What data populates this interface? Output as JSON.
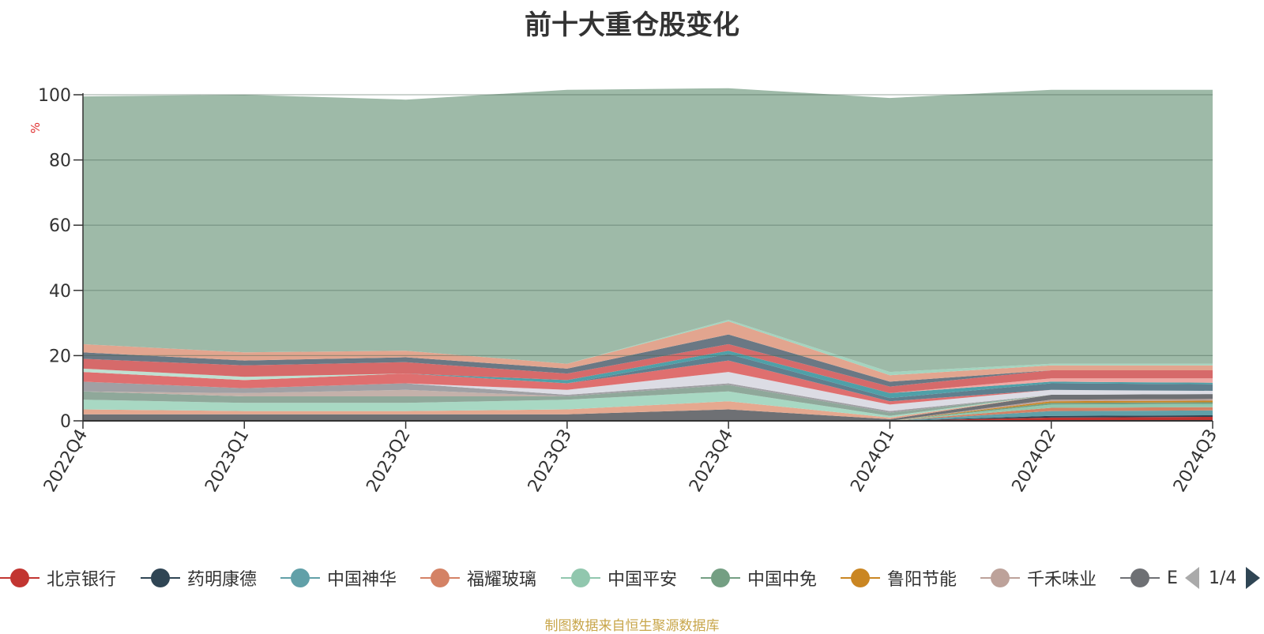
{
  "chart_data": {
    "type": "area",
    "title": "前十大重仓股变化",
    "ylabel": "%",
    "ylim": [
      0,
      100
    ],
    "yticks": [
      0,
      20,
      40,
      60,
      80,
      100
    ],
    "stacked": true,
    "grid": true,
    "legend_position": "bottom",
    "categories": [
      "2022Q4",
      "2023Q1",
      "2023Q2",
      "2023Q3",
      "2023Q4",
      "2024Q1",
      "2024Q2",
      "2024Q3"
    ],
    "series": [
      {
        "name": "北京银行",
        "color": "#c23531",
        "values": [
          0,
          0,
          0,
          0,
          0,
          0,
          1.0,
          1.2
        ]
      },
      {
        "name": "药明康德",
        "color": "#2f4554",
        "values": [
          0,
          0,
          0,
          0,
          0,
          0,
          0.5,
          0.5
        ]
      },
      {
        "name": "中国神华",
        "color": "#61a0a8",
        "values": [
          0,
          0,
          0,
          0,
          0,
          0,
          1.5,
          1.5
        ]
      },
      {
        "name": "福耀玻璃",
        "color": "#d48265",
        "values": [
          0,
          0,
          0,
          0,
          0,
          0,
          1.0,
          1.0
        ]
      },
      {
        "name": "中国平安",
        "color": "#91c7ae",
        "values": [
          0,
          0,
          0,
          0,
          0,
          0,
          1.0,
          1.0
        ]
      },
      {
        "name": "中国中免",
        "color": "#749f83",
        "values": [
          0,
          0,
          0,
          0,
          0,
          0,
          0.5,
          0.5
        ]
      },
      {
        "name": "鲁阳节能",
        "color": "#ca8622",
        "values": [
          0,
          0,
          0,
          0,
          0,
          0,
          0.5,
          0.5
        ]
      },
      {
        "name": "千禾味业",
        "color": "#bda29a",
        "values": [
          0,
          0,
          0,
          0,
          0,
          0,
          0.5,
          0.5
        ]
      },
      {
        "name": "",
        "color": "#6e7074",
        "values": [
          2.0,
          2.0,
          2.0,
          2.0,
          3.5,
          0.5,
          1.5,
          1.5
        ]
      },
      {
        "name": "",
        "color": "#e5a88f",
        "values": [
          1.5,
          1.0,
          1.0,
          1.5,
          2.5,
          0.5,
          0,
          0
        ]
      },
      {
        "name": "",
        "color": "#a8d8c3",
        "values": [
          3.0,
          2.5,
          2.5,
          3.0,
          3.0,
          0.5,
          0,
          0
        ]
      },
      {
        "name": "",
        "color": "#8fa89a",
        "values": [
          2.5,
          2.0,
          2.0,
          1.0,
          2.0,
          1.0,
          0,
          0
        ]
      },
      {
        "name": "",
        "color": "#c4b1aa",
        "values": [
          0,
          1.0,
          2.0,
          0,
          0,
          0,
          0,
          0
        ]
      },
      {
        "name": "",
        "color": "#a0a0a4",
        "values": [
          3.0,
          1.5,
          2.0,
          0.5,
          0.5,
          0.5,
          0,
          0
        ]
      },
      {
        "name": "",
        "color": "#dcdce4",
        "values": [
          0,
          0,
          0,
          1.5,
          3.5,
          2.0,
          1.5,
          1.0
        ]
      },
      {
        "name": "",
        "color": "#df6f6f",
        "values": [
          3.0,
          2.5,
          3.0,
          2.0,
          3.5,
          1.0,
          0,
          0
        ]
      },
      {
        "name": "",
        "color": "#bfe0d1",
        "values": [
          1.0,
          1.0,
          0,
          0,
          0,
          0,
          0,
          0
        ]
      },
      {
        "name": "",
        "color": "#5f7f8e",
        "values": [
          0,
          0,
          0,
          0,
          2.0,
          1.0,
          2.0,
          2.0
        ]
      },
      {
        "name": "",
        "color": "#4fa0a8",
        "values": [
          0,
          0,
          0,
          1.0,
          1.0,
          1.5,
          0.5,
          0.5
        ]
      },
      {
        "name": "",
        "color": "#f0a8a4",
        "values": [
          0,
          0,
          0,
          0,
          0,
          0,
          1.0,
          1.3
        ]
      },
      {
        "name": "",
        "color": "#d66a6a",
        "values": [
          3.0,
          3.5,
          3.5,
          2.0,
          2.0,
          2.0,
          2.5,
          2.5
        ]
      },
      {
        "name": "",
        "color": "#6a7884",
        "values": [
          2.0,
          1.5,
          1.5,
          1.5,
          3.0,
          1.5,
          0,
          0
        ]
      },
      {
        "name": "",
        "color": "#e2a58f",
        "values": [
          2.5,
          2.5,
          2.0,
          1.5,
          4.0,
          2.0,
          1.5,
          1.5
        ]
      },
      {
        "name": "",
        "color": "#a4d4bf",
        "values": [
          0,
          0,
          0,
          0,
          0.5,
          1.0,
          0.5,
          0.5
        ]
      },
      {
        "name": "",
        "color": "#9ebaa8",
        "values": [
          76.0,
          79.0,
          77.0,
          84.0,
          71.0,
          84.0,
          84.0,
          84.0
        ]
      }
    ]
  },
  "legend": {
    "items": [
      {
        "label": "北京银行",
        "color": "#c23531"
      },
      {
        "label": "药明康德",
        "color": "#2f4554"
      },
      {
        "label": "中国神华",
        "color": "#61a0a8"
      },
      {
        "label": "福耀玻璃",
        "color": "#d48265"
      },
      {
        "label": "中国平安",
        "color": "#91c7ae"
      },
      {
        "label": "中国中免",
        "color": "#749f83"
      },
      {
        "label": "鲁阳节能",
        "color": "#ca8622"
      },
      {
        "label": "千禾味业",
        "color": "#bda29a"
      },
      {
        "label": "E",
        "color": "#6e7074"
      }
    ],
    "page": "1/4"
  },
  "footer": "制图数据来自恒生聚源数据库"
}
